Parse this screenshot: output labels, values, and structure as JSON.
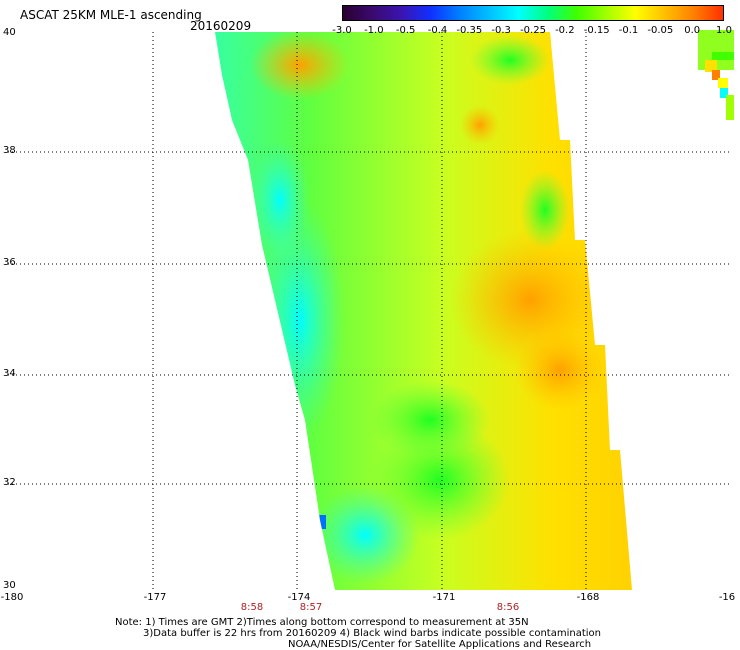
{
  "title": "ASCAT 25KM MLE-1 ascending",
  "date": "20160209",
  "colorbar": {
    "colors": [
      "#2a0030",
      "#3a0a6e",
      "#3b14b0",
      "#1030ff",
      "#0080ff",
      "#00c0ff",
      "#00ffff",
      "#00ff80",
      "#40ff00",
      "#a0ff00",
      "#ffff00",
      "#ffc000",
      "#ff8000",
      "#ff3000"
    ],
    "labels": [
      "-3.0",
      "-1.0",
      "-0.5",
      "-0.4",
      "-0.35",
      "-0.3",
      "-0.25",
      "-0.2",
      "-0.15",
      "-0.1",
      "-0.05",
      "0.0",
      "1.0"
    ]
  },
  "axes": {
    "lat_labels": [
      "40",
      "38",
      "36",
      "34",
      "32",
      "30"
    ],
    "lon_labels": [
      "-180",
      "-177",
      "-174",
      "-171",
      "-168",
      "-16"
    ]
  },
  "pass_times": [
    "8:58",
    "8:57",
    "8:56"
  ],
  "notes": [
    "Note: 1) Times are GMT 2)Times along bottom correspond to measurement at 35N",
    "3)Data buffer is 22 hrs from 20160209 4) Black wind barbs indicate possible contamination",
    "NOAA/NESDIS/Center for Satellite Applications and Research"
  ]
}
